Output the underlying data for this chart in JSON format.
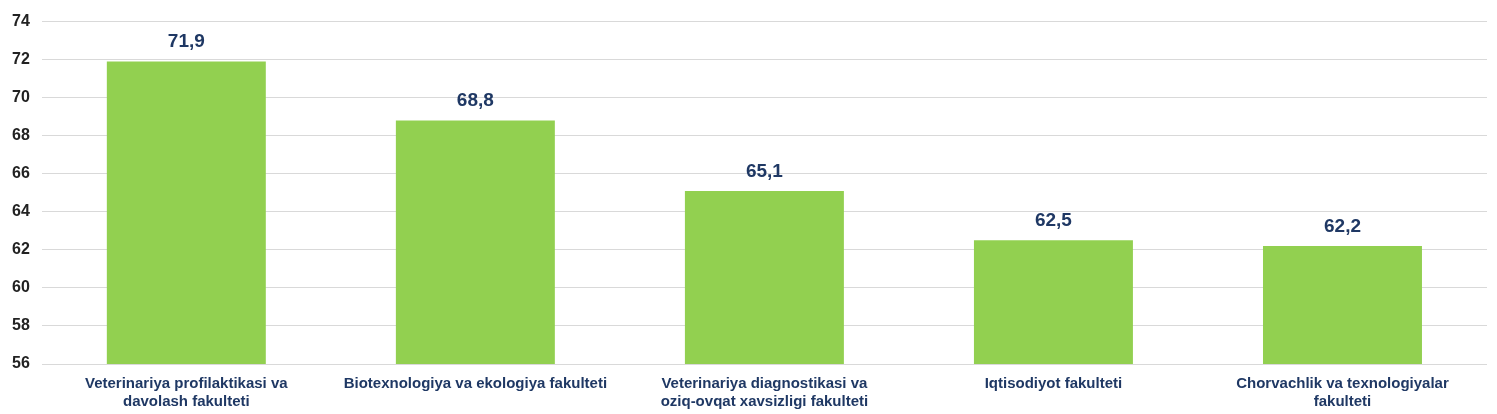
{
  "chart_data": {
    "type": "bar",
    "categories": [
      "Veterinariya profilaktikasi va davolash fakulteti",
      "Biotexnologiya va ekologiya fakulteti",
      "Veterinariya diagnostikasi va oziq-ovqat xavsizligi fakulteti",
      "Iqtisodiyot fakulteti",
      "Chorvachlik va texnologiyalar fakulteti"
    ],
    "values": [
      71.9,
      68.8,
      65.1,
      62.5,
      62.2
    ],
    "value_labels": [
      "71,9",
      "68,8",
      "65,1",
      "62,5",
      "62,2"
    ],
    "color": "#92d050",
    "ylim": [
      56,
      74
    ],
    "yticks": [
      56,
      58,
      60,
      62,
      64,
      66,
      68,
      70,
      72,
      74
    ],
    "grid": "y",
    "legend": false
  }
}
